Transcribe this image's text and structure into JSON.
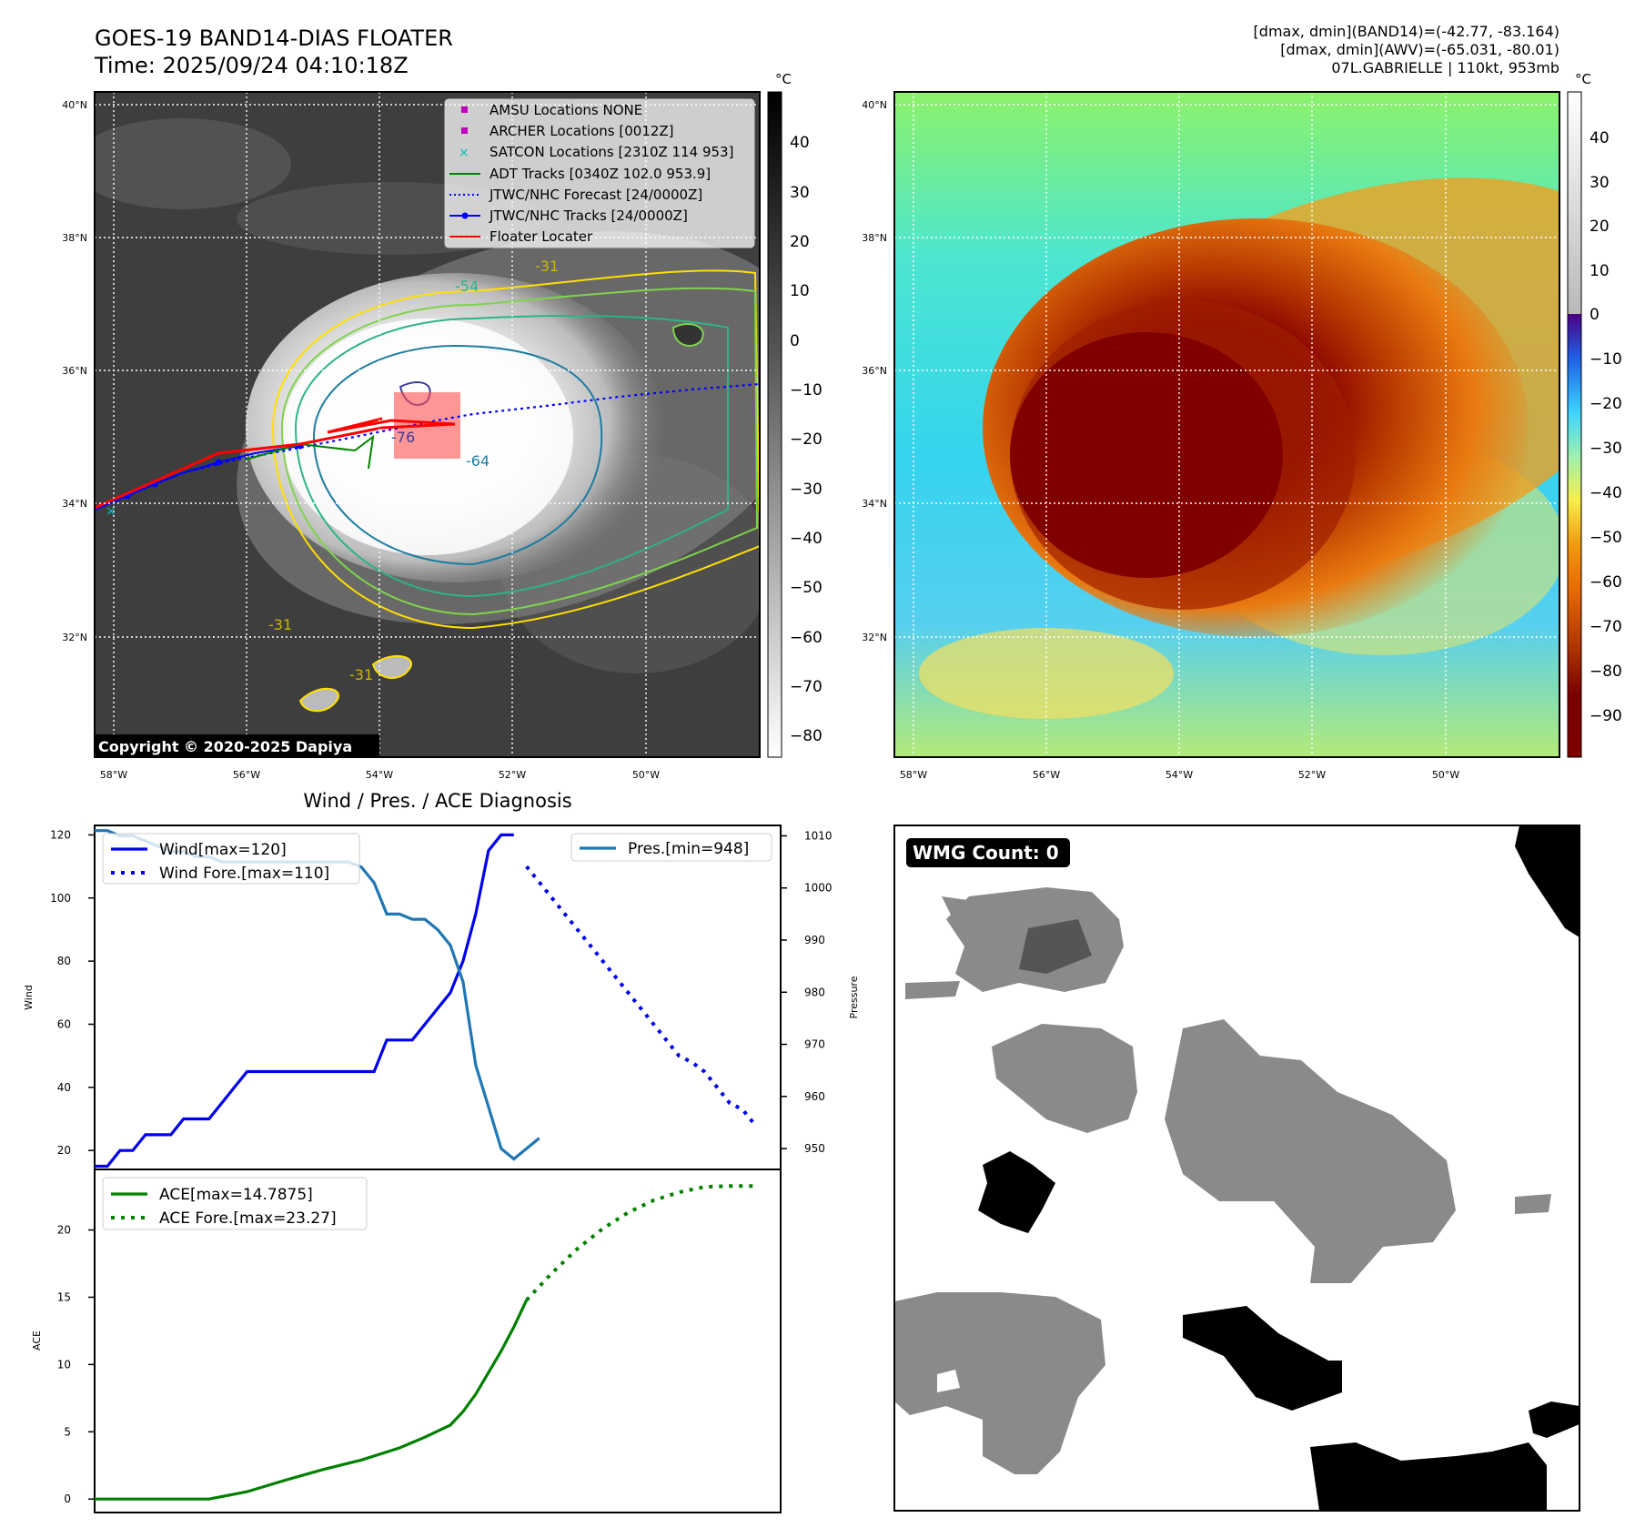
{
  "header": {
    "title": "GOES-19 BAND14-DIAS FLOATER",
    "time": "Time: 2025/09/24 04:10:18Z",
    "info1": "[dmax, dmin](BAND14)=(-42.77, -83.164)",
    "info2": "[dmax, dmin](AWV)=(-65.031, -80.01)",
    "info3": "07L.GABRIELLE | 110kt, 953mb"
  },
  "map": {
    "lat_labels": [
      "40°N",
      "38°N",
      "36°N",
      "34°N",
      "32°N"
    ],
    "lon_labels": [
      "58°W",
      "56°W",
      "54°W",
      "52°W",
      "50°W"
    ],
    "copyright": "Copyright © 2020-2025 Dapiya",
    "contour_labels": [
      "-76",
      "-64",
      "-54",
      "-31",
      "-31",
      "-31"
    ],
    "legend": [
      "AMSU Locations NONE",
      "ARCHER Locations [0012Z]",
      "SATCON Locations [2310Z 114 953]",
      "ADT Tracks [0340Z 102.0 953.9]",
      "JTWC/NHC Forecast [24/0000Z]",
      "JTWC/NHC Tracks [24/0000Z]",
      "Floater Locater"
    ],
    "colors": {
      "amsu": "#bf00bf",
      "archer": "#bf00bf",
      "satcon": "#00bfbf",
      "adt": "#008000",
      "forecast": "#0000ff",
      "track": "#0000ff",
      "floater": "#ff0000"
    }
  },
  "colorbar_left": {
    "unit": "°C",
    "ticks": [
      "40",
      "30",
      "20",
      "10",
      "0",
      "−10",
      "−20",
      "−30",
      "−40",
      "−50",
      "−60",
      "−70",
      "−80"
    ]
  },
  "colorbar_right": {
    "unit": "°C",
    "ticks": [
      "40",
      "30",
      "20",
      "10",
      "0",
      "−10",
      "−20",
      "−30",
      "−40",
      "−50",
      "−60",
      "−70",
      "−80",
      "−90"
    ]
  },
  "diagnosis": {
    "title": "Wind / Pres. / ACE Diagnosis",
    "wind_ylabel": "Wind",
    "pres_ylabel": "Pressure",
    "ace_ylabel": "ACE",
    "wind_ticks": [
      "120",
      "100",
      "80",
      "60",
      "40",
      "20"
    ],
    "pres_ticks": [
      "1010",
      "1000",
      "990",
      "980",
      "970",
      "960",
      "950"
    ],
    "ace_ticks": [
      "20",
      "15",
      "10",
      "5",
      "0"
    ],
    "legend_wind": "Wind[max=120]",
    "legend_wind_fore": "Wind Fore.[max=110]",
    "legend_pres": "Pres.[min=948]",
    "legend_ace": "ACE[max=14.7875]",
    "legend_ace_fore": "ACE Fore.[max=23.27]",
    "colors": {
      "wind": "#0000ee",
      "pres": "#1f77b4",
      "ace": "#008000"
    }
  },
  "wmg": {
    "label": "WMG Count: 0"
  },
  "chart_data": [
    {
      "type": "line",
      "title": "Wind / Pres. / ACE Diagnosis",
      "ylabel": "Wind",
      "ylim": [
        14,
        123
      ],
      "xlim": [
        0,
        54
      ],
      "series": [
        {
          "name": "Wind[max=120]",
          "style": "solid",
          "x": [
            0,
            1,
            2,
            3,
            4,
            5,
            6,
            7,
            8,
            9,
            10,
            11,
            12,
            13,
            14,
            15,
            16,
            17,
            18,
            19,
            20,
            21,
            22,
            23,
            24,
            25,
            26,
            27,
            28,
            29,
            30,
            31,
            32,
            33
          ],
          "values": [
            15,
            15,
            20,
            20,
            25,
            25,
            25,
            30,
            30,
            30,
            35,
            40,
            45,
            45,
            45,
            45,
            45,
            45,
            45,
            45,
            45,
            45,
            45,
            55,
            55,
            55,
            60,
            65,
            70,
            80,
            95,
            115,
            120,
            120
          ]
        },
        {
          "name": "Wind Fore.[max=110]",
          "style": "dotted",
          "x": [
            34,
            35,
            36,
            37,
            38,
            39,
            40,
            41,
            42,
            43,
            44,
            45,
            46,
            47,
            48,
            49,
            50,
            51,
            52
          ],
          "values": [
            110,
            105,
            100,
            95,
            90,
            85,
            80,
            75,
            70,
            65,
            60,
            55,
            50,
            48,
            45,
            40,
            35,
            33,
            28
          ]
        }
      ]
    },
    {
      "type": "line",
      "ylabel": "Pressure",
      "ylim": [
        946,
        1012
      ],
      "xlim": [
        0,
        54
      ],
      "series": [
        {
          "name": "Pres.[min=948]",
          "x": [
            0,
            1,
            2,
            3,
            4,
            5,
            6,
            7,
            8,
            9,
            10,
            11,
            12,
            13,
            14,
            15,
            16,
            17,
            18,
            19,
            20,
            21,
            22,
            23,
            24,
            25,
            26,
            27,
            28,
            29,
            30,
            31,
            32,
            33,
            34,
            35
          ],
          "values": [
            1011,
            1011,
            1010,
            1010,
            1009,
            1008,
            1007,
            1007,
            1006,
            1006,
            1005,
            1005,
            1005,
            1005,
            1005,
            1005,
            1005,
            1005,
            1005,
            1005,
            1005,
            1004,
            1001,
            995,
            995,
            994,
            994,
            992,
            989,
            982,
            966,
            958,
            950,
            948,
            950,
            952
          ]
        }
      ]
    },
    {
      "type": "line",
      "ylabel": "ACE",
      "ylim": [
        -1,
        24.5
      ],
      "xlim": [
        0,
        54
      ],
      "series": [
        {
          "name": "ACE[max=14.7875]",
          "style": "solid",
          "x": [
            0,
            3,
            6,
            9,
            12,
            15,
            18,
            21,
            24,
            26,
            28,
            29,
            30,
            31,
            32,
            33,
            34
          ],
          "values": [
            0,
            0,
            0,
            0,
            0.55,
            1.4,
            2.2,
            2.9,
            3.8,
            4.6,
            5.5,
            6.5,
            7.8,
            9.4,
            11.0,
            12.8,
            14.7875
          ]
        },
        {
          "name": "ACE Fore.[max=23.27]",
          "style": "dotted",
          "x": [
            34,
            36,
            38,
            40,
            42,
            44,
            46,
            48,
            50,
            52
          ],
          "values": [
            14.79,
            16.8,
            18.6,
            20.1,
            21.3,
            22.2,
            22.8,
            23.2,
            23.27,
            23.27
          ]
        }
      ]
    }
  ]
}
